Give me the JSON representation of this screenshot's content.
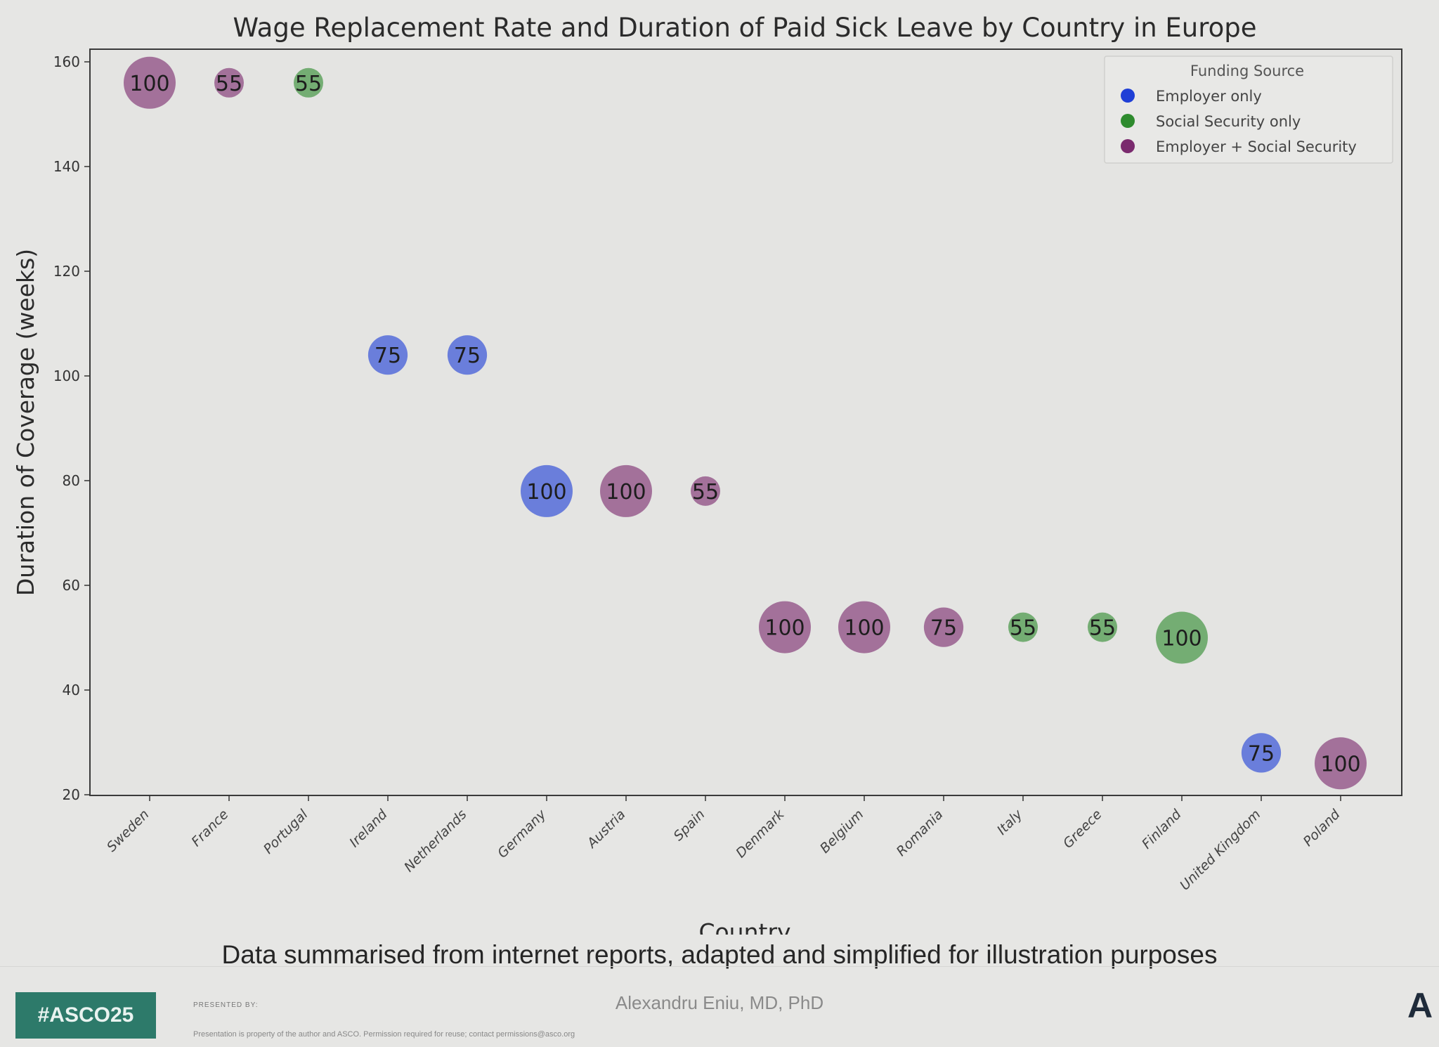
{
  "chart_data": {
    "type": "scatter",
    "title": "Wage Replacement Rate and Duration of Paid Sick Leave by Country in Europe",
    "xlabel": "Country",
    "ylabel": "Duration of Coverage (weeks)",
    "ylim": [
      20,
      160
    ],
    "yticks": [
      20,
      40,
      60,
      80,
      100,
      120,
      140,
      160
    ],
    "grid": false,
    "legend": {
      "title": "Funding Source",
      "placement": "top-right",
      "entries": [
        {
          "label": "Employer only",
          "color": "#1f3fd6"
        },
        {
          "label": "Social Security only",
          "color": "#2e8b2e"
        },
        {
          "label": "Employer + Social Security",
          "color": "#7a2a6e"
        }
      ]
    },
    "points": [
      {
        "country": "Sweden",
        "weeks": 156,
        "rate": 100,
        "funding": "Employer + Social Security"
      },
      {
        "country": "France",
        "weeks": 156,
        "rate": 55,
        "funding": "Employer + Social Security"
      },
      {
        "country": "Portugal",
        "weeks": 156,
        "rate": 55,
        "funding": "Social Security only"
      },
      {
        "country": "Ireland",
        "weeks": 104,
        "rate": 75,
        "funding": "Employer only"
      },
      {
        "country": "Netherlands",
        "weeks": 104,
        "rate": 75,
        "funding": "Employer only"
      },
      {
        "country": "Germany",
        "weeks": 78,
        "rate": 100,
        "funding": "Employer only"
      },
      {
        "country": "Austria",
        "weeks": 78,
        "rate": 100,
        "funding": "Employer + Social Security"
      },
      {
        "country": "Spain",
        "weeks": 78,
        "rate": 55,
        "funding": "Employer + Social Security"
      },
      {
        "country": "Denmark",
        "weeks": 52,
        "rate": 100,
        "funding": "Employer + Social Security"
      },
      {
        "country": "Belgium",
        "weeks": 52,
        "rate": 100,
        "funding": "Employer + Social Security"
      },
      {
        "country": "Romania",
        "weeks": 52,
        "rate": 75,
        "funding": "Employer + Social Security"
      },
      {
        "country": "Italy",
        "weeks": 52,
        "rate": 55,
        "funding": "Social Security only"
      },
      {
        "country": "Greece",
        "weeks": 52,
        "rate": 55,
        "funding": "Social Security only"
      },
      {
        "country": "Finland",
        "weeks": 50,
        "rate": 100,
        "funding": "Social Security only"
      },
      {
        "country": "United Kingdom",
        "weeks": 28,
        "rate": 75,
        "funding": "Employer only"
      },
      {
        "country": "Poland",
        "weeks": 26,
        "rate": 100,
        "funding": "Employer + Social Security"
      }
    ]
  },
  "caption": "Data summarised from internet reports, adapted and simplified  for illustration purposes",
  "footer": {
    "hashtag": "#ASCO25",
    "presented_by": "PRESENTED BY:",
    "presenter": "Alexandru Eniu, MD, PhD",
    "copyright": "Presentation is property of the author and ASCO. Permission required for reuse; contact permissions@asco.org",
    "logo_letter": "A"
  }
}
